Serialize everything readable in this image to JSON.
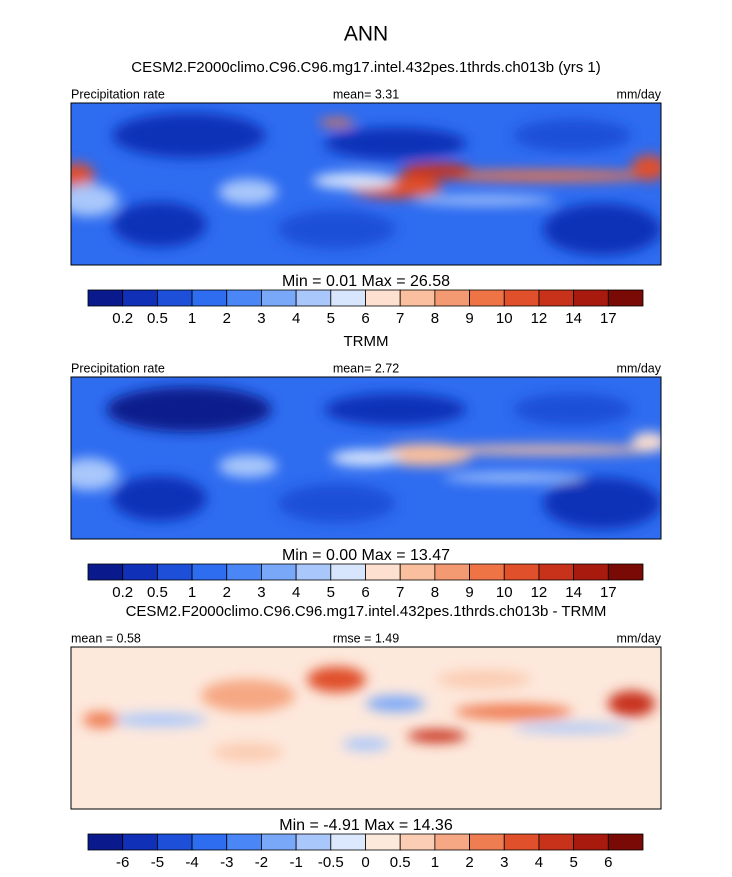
{
  "title": "ANN",
  "panels": [
    {
      "title": "CESM2.F2000climo.C96.C96.mg17.intel.432pes.1thrds.ch013b (yrs 1)",
      "left": "Precipitation rate",
      "center": "mean=  3.31",
      "right": "mm/day",
      "minmax": "Min =   0.01 Max =  26.58",
      "colorbar": {
        "labels": [
          "0.2",
          "0.5",
          "1",
          "2",
          "3",
          "4",
          "5",
          "6",
          "7",
          "8",
          "9",
          "10",
          "12",
          "14",
          "17"
        ],
        "colors": [
          "#0a1a8c",
          "#1030b8",
          "#1e4fd8",
          "#2e6cf0",
          "#4a86f5",
          "#7aa8f8",
          "#a9c7fb",
          "#d8e6fd",
          "#fde0cf",
          "#f9bf9e",
          "#f49a72",
          "#ee7445",
          "#e0502a",
          "#c8311a",
          "#a81a0e",
          "#7a0a05"
        ]
      }
    },
    {
      "title": "TRMM",
      "left": "Precipitation rate",
      "center": "mean=  2.72",
      "right": "mm/day",
      "minmax": "Min =   0.00 Max =  13.47",
      "colorbar": {
        "labels": [
          "0.2",
          "0.5",
          "1",
          "2",
          "3",
          "4",
          "5",
          "6",
          "7",
          "8",
          "9",
          "10",
          "12",
          "14",
          "17"
        ],
        "colors": [
          "#0a1a8c",
          "#1030b8",
          "#1e4fd8",
          "#2e6cf0",
          "#4a86f5",
          "#7aa8f8",
          "#a9c7fb",
          "#d8e6fd",
          "#fde0cf",
          "#f9bf9e",
          "#f49a72",
          "#ee7445",
          "#e0502a",
          "#c8311a",
          "#a81a0e",
          "#7a0a05"
        ]
      }
    },
    {
      "title": "CESM2.F2000climo.C96.C96.mg17.intel.432pes.1thrds.ch013b - TRMM",
      "left": "mean =   0.58",
      "center": "rmse =   1.49",
      "right": "mm/day",
      "minmax": "Min =  -4.91 Max =  14.36",
      "colorbar": {
        "labels": [
          "-6",
          "-5",
          "-4",
          "-3",
          "-2",
          "-1",
          "-0.5",
          "0",
          "0.5",
          "1",
          "2",
          "3",
          "4",
          "5",
          "6"
        ],
        "colors": [
          "#0a1a8c",
          "#1030b8",
          "#1e4fd8",
          "#2e6cf0",
          "#4a86f5",
          "#7aa8f8",
          "#a9c7fb",
          "#dce8fd",
          "#fde8dc",
          "#fbcdb4",
          "#f6a783",
          "#ef7d52",
          "#e0502a",
          "#c8311a",
          "#a81a0e",
          "#7a0a05"
        ]
      }
    }
  ]
}
